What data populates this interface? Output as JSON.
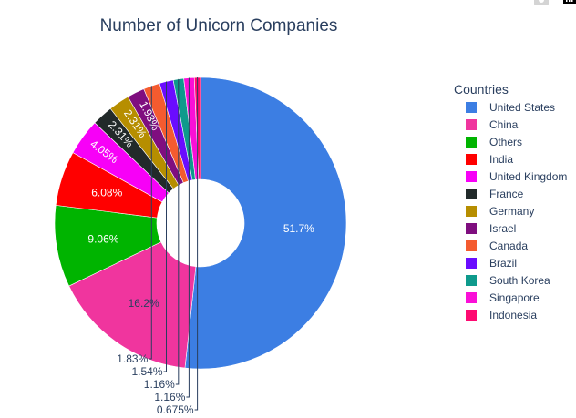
{
  "chart_data": {
    "type": "pie",
    "hole": true,
    "title": "Number of Unicorn Companies",
    "legend_title": "Countries",
    "legend_position": "right",
    "direction": "clockwise",
    "start_angle": "top",
    "slices": [
      {
        "label": "United States",
        "percent": 51.7,
        "percent_label": "51.7%",
        "color": "#3c7ee3",
        "text_pos": "inside"
      },
      {
        "label": "China",
        "percent": 16.2,
        "percent_label": "16.2%",
        "color": "#f0359e",
        "text_pos": "inside",
        "dark_text": true
      },
      {
        "label": "Others",
        "percent": 9.06,
        "percent_label": "9.06%",
        "color": "#00b400",
        "text_pos": "inside"
      },
      {
        "label": "India",
        "percent": 6.08,
        "percent_label": "6.08%",
        "color": "#ff0000",
        "text_pos": "inside"
      },
      {
        "label": "United Kingdom",
        "percent": 4.05,
        "percent_label": "4.05%",
        "color": "#f700f7",
        "text_pos": "inside"
      },
      {
        "label": "France",
        "percent": 2.31,
        "percent_label": "2.31%",
        "color": "#222a2a",
        "text_pos": "inside"
      },
      {
        "label": "Germany",
        "percent": 2.31,
        "percent_label": "2.31%",
        "color": "#b68e00",
        "text_pos": "inside"
      },
      {
        "label": "Israel",
        "percent": 1.93,
        "percent_label": "1.93%",
        "color": "#7f0e7f",
        "text_pos": "inside"
      },
      {
        "label": "Canada",
        "percent": 1.83,
        "percent_label": "1.83%",
        "color": "#f45b2f",
        "text_pos": "outside"
      },
      {
        "label": "Brazil",
        "percent": 1.54,
        "percent_label": "1.54%",
        "color": "#6a0cff",
        "text_pos": "outside"
      },
      {
        "label": "South Korea",
        "percent": 1.16,
        "percent_label": "1.16%",
        "color": "#0e9a8c",
        "text_pos": "outside"
      },
      {
        "label": "Singapore",
        "percent": 1.16,
        "percent_label": "1.16%",
        "color": "#fa0fd7",
        "text_pos": "outside"
      },
      {
        "label": "Indonesia",
        "percent": 0.675,
        "percent_label": "0.675%",
        "color": "#fe0a71",
        "text_pos": "outside"
      }
    ]
  }
}
